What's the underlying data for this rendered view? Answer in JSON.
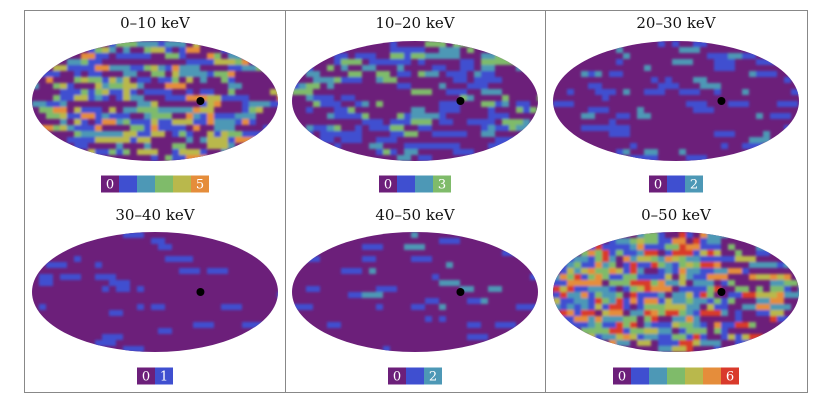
{
  "chart_data": {
    "type": "heatmap",
    "description": "All-sky (Hammer-Aitoff) event count maps per energy band",
    "panels": [
      {
        "title": "0–10 keV",
        "colorbar": {
          "min_label": "0",
          "max_label": "5",
          "max": 5
        },
        "activity": 0.55,
        "marker": {
          "lon": -70,
          "lat": 0
        }
      },
      {
        "title": "10–20 keV",
        "colorbar": {
          "min_label": "0",
          "max_label": "3",
          "max": 3
        },
        "activity": 0.35,
        "marker": {
          "lon": -70,
          "lat": 0
        }
      },
      {
        "title": "20–30 keV",
        "colorbar": {
          "min_label": "0",
          "max_label": "2",
          "max": 2
        },
        "activity": 0.16,
        "marker": {
          "lon": -70,
          "lat": 0
        }
      },
      {
        "title": "30–40 keV",
        "colorbar": {
          "min_label": "0",
          "max_label": "1",
          "max": 1
        },
        "activity": 0.08,
        "marker": {
          "lon": -70,
          "lat": 0
        }
      },
      {
        "title": "40–50 keV",
        "colorbar": {
          "min_label": "0",
          "max_label": "2",
          "max": 2
        },
        "activity": 0.07,
        "marker": {
          "lon": -70,
          "lat": 0
        }
      },
      {
        "title": "0–50 keV",
        "colorbar": {
          "min_label": "0",
          "max_label": "6",
          "max": 6
        },
        "activity": 0.85,
        "marker": {
          "lon": -70,
          "lat": 0
        }
      }
    ],
    "palette": [
      "#6c1f7a",
      "#3f4fd0",
      "#4d98b6",
      "#7fbb6a",
      "#b9b84c",
      "#e58d3b",
      "#d93a2b"
    ]
  }
}
